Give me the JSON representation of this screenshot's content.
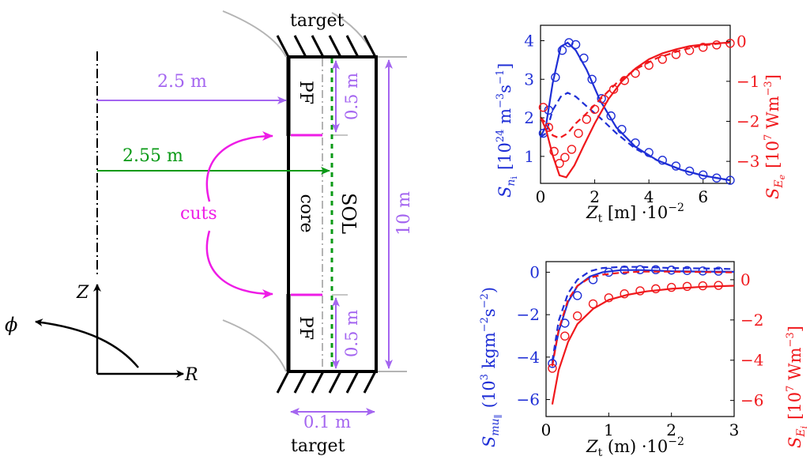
{
  "colors": {
    "blue": "#1f2fd6",
    "red": "#f0181c",
    "purple": "#a465f0",
    "green": "#0a9a16",
    "magenta": "#ee1ce6",
    "black": "#000000",
    "gray": "#b4b4b4"
  },
  "geometry": {
    "target_top": "target",
    "target_bottom": "target",
    "dist_pf": "2.5 m",
    "dist_sep": "2.55 m",
    "cuts": "cuts",
    "pf_label": "PF",
    "core_label": "core",
    "sol_label": "SOL",
    "pf_height_top": "0.5 m",
    "pf_height_bottom": "0.5 m",
    "total_height": "10 m",
    "width": "0.1 m",
    "axis_z": "Z",
    "axis_r": "R",
    "axis_phi": "ϕ"
  },
  "chart_data": [
    {
      "type": "line",
      "x_label": "Z_t [m] ·10^-2",
      "y_left_label": "S_{n_i} [10^24 m^-3 s^-1]",
      "y_right_label": "S_{E_e} [10^7 W m^-3]",
      "xlim": [
        0,
        7
      ],
      "ylim_left": [
        0.3,
        4.4
      ],
      "ylim_right": [
        -3.55,
        0.4
      ],
      "x_ticks": [
        "0",
        "2",
        "4",
        "6"
      ],
      "y_left_ticks": [
        "1",
        "2",
        "3",
        "4"
      ],
      "y_right_ticks": [
        "0",
        "−1",
        "−2",
        "−3"
      ],
      "series": [
        {
          "axis": "left",
          "color": "blue",
          "style": "solid",
          "x": [
            0,
            0.2,
            0.45,
            0.75,
            1.0,
            1.3,
            1.7,
            2.2,
            2.8,
            3.5,
            4.3,
            5.2,
            6.0,
            7.0
          ],
          "y": [
            1.5,
            1.8,
            2.9,
            3.85,
            3.95,
            3.75,
            3.25,
            2.45,
            1.75,
            1.25,
            0.9,
            0.65,
            0.5,
            0.38
          ]
        },
        {
          "axis": "left",
          "color": "blue",
          "style": "dashed",
          "x": [
            0,
            0.2,
            0.45,
            0.75,
            1.0,
            1.3,
            1.7,
            2.2,
            2.8,
            3.5,
            4.3,
            5.2,
            6.0,
            7.0
          ],
          "y": [
            1.5,
            1.6,
            2.2,
            2.55,
            2.65,
            2.55,
            2.3,
            2.0,
            1.6,
            1.2,
            0.9,
            0.65,
            0.5,
            0.38
          ]
        },
        {
          "axis": "left",
          "color": "blue",
          "style": "markers",
          "x": [
            0.1,
            0.3,
            0.55,
            0.8,
            1.05,
            1.3,
            1.6,
            1.9,
            2.25,
            2.6,
            3.0,
            3.5,
            4.0,
            4.5,
            5.0,
            5.5,
            6.0,
            6.5,
            7.0
          ],
          "y": [
            1.6,
            2.2,
            3.05,
            3.75,
            3.95,
            3.9,
            3.55,
            3.0,
            2.5,
            2.05,
            1.7,
            1.35,
            1.1,
            0.9,
            0.75,
            0.62,
            0.52,
            0.44,
            0.38
          ]
        },
        {
          "axis": "right",
          "color": "red",
          "style": "solid",
          "x": [
            0,
            0.2,
            0.45,
            0.7,
            0.95,
            1.25,
            1.6,
            2.0,
            2.5,
            3.0,
            3.5,
            4.0,
            4.5,
            5.0,
            5.5,
            6.0,
            6.5,
            7.0
          ],
          "y": [
            -1.9,
            -2.2,
            -2.85,
            -3.35,
            -3.4,
            -3.1,
            -2.6,
            -2.05,
            -1.45,
            -1.0,
            -0.68,
            -0.45,
            -0.3,
            -0.2,
            -0.12,
            -0.08,
            -0.05,
            -0.03
          ]
        },
        {
          "axis": "right",
          "color": "red",
          "style": "dashed",
          "x": [
            0,
            0.2,
            0.45,
            0.7,
            1.0,
            1.3,
            1.7,
            2.2,
            2.8,
            3.5,
            4.3,
            5.2,
            6.0,
            7.0
          ],
          "y": [
            -1.9,
            -2.05,
            -2.35,
            -2.42,
            -2.3,
            -2.05,
            -1.8,
            -1.45,
            -1.05,
            -0.7,
            -0.42,
            -0.22,
            -0.1,
            -0.03
          ]
        },
        {
          "axis": "right",
          "color": "red",
          "style": "markers",
          "x": [
            0.1,
            0.3,
            0.5,
            0.7,
            0.9,
            1.15,
            1.4,
            1.7,
            2.0,
            2.35,
            2.7,
            3.1,
            3.5,
            4.0,
            4.5,
            5.0,
            5.5,
            6.0,
            6.5,
            7.0
          ],
          "y": [
            -1.65,
            -2.15,
            -2.75,
            -3.05,
            -2.9,
            -2.7,
            -2.3,
            -1.95,
            -1.7,
            -1.45,
            -1.2,
            -0.98,
            -0.8,
            -0.6,
            -0.45,
            -0.33,
            -0.23,
            -0.15,
            -0.09,
            -0.05
          ]
        }
      ]
    },
    {
      "type": "line",
      "x_label": "Z_t (m) ·10^-2",
      "y_left_label": "S_{mu_∥} (10^3 kg m^-2 s^-2)",
      "y_right_label": "S_{E_i} [10^7 W m^-3]",
      "xlim": [
        0,
        3
      ],
      "ylim_left": [
        -6.8,
        0.5
      ],
      "ylim_right": [
        -6.8,
        0.9
      ],
      "x_ticks": [
        "0",
        "1",
        "2",
        "3"
      ],
      "y_left_ticks": [
        "0",
        "−2",
        "−4",
        "−6"
      ],
      "y_right_ticks": [
        "0",
        "−2",
        "−4",
        "−6"
      ],
      "series": [
        {
          "axis": "left",
          "color": "blue",
          "style": "solid",
          "x": [
            0.1,
            0.2,
            0.35,
            0.5,
            0.7,
            0.9,
            1.2,
            1.5,
            2.0,
            2.5,
            3.0
          ],
          "y": [
            -4.3,
            -2.8,
            -1.4,
            -0.65,
            -0.2,
            0.0,
            0.1,
            0.1,
            0.05,
            0.03,
            0.02
          ]
        },
        {
          "axis": "left",
          "color": "blue",
          "style": "dashed",
          "x": [
            0.1,
            0.2,
            0.35,
            0.5,
            0.7,
            0.9,
            1.2,
            1.5,
            2.0,
            2.5,
            3.0
          ],
          "y": [
            -4.2,
            -2.3,
            -1.0,
            -0.35,
            0.05,
            0.2,
            0.25,
            0.25,
            0.2,
            0.18,
            0.15
          ]
        },
        {
          "axis": "left",
          "color": "blue",
          "style": "markers",
          "x": [
            0.1,
            0.3,
            0.5,
            0.75,
            1.0,
            1.25,
            1.5,
            1.75,
            2.0,
            2.25,
            2.5,
            2.75
          ],
          "y": [
            -4.3,
            -2.4,
            -1.1,
            -0.35,
            0.0,
            0.1,
            0.12,
            0.12,
            0.1,
            0.08,
            0.06,
            0.05
          ]
        },
        {
          "axis": "right",
          "color": "red",
          "style": "solid",
          "x": [
            0.1,
            0.2,
            0.35,
            0.5,
            0.75,
            1.0,
            1.3,
            1.6,
            2.0,
            2.5,
            3.0
          ],
          "y": [
            -6.2,
            -4.5,
            -3.1,
            -2.2,
            -1.45,
            -1.0,
            -0.75,
            -0.58,
            -0.45,
            -0.35,
            -0.3
          ]
        },
        {
          "axis": "right",
          "color": "red",
          "style": "dashed",
          "x": [
            0.1,
            0.2,
            0.35,
            0.5,
            0.7,
            0.9,
            1.2,
            1.5,
            2.0,
            2.5,
            3.0
          ],
          "y": [
            -4.3,
            -2.5,
            -1.0,
            -0.3,
            0.1,
            0.25,
            0.35,
            0.4,
            0.4,
            0.38,
            0.36
          ]
        },
        {
          "axis": "right",
          "color": "red",
          "style": "markers",
          "x": [
            0.1,
            0.3,
            0.5,
            0.75,
            1.0,
            1.25,
            1.5,
            1.75,
            2.0,
            2.25,
            2.5,
            2.75
          ],
          "y": [
            -4.4,
            -2.8,
            -1.8,
            -1.2,
            -0.9,
            -0.7,
            -0.55,
            -0.45,
            -0.38,
            -0.33,
            -0.3,
            -0.28
          ]
        }
      ]
    }
  ]
}
